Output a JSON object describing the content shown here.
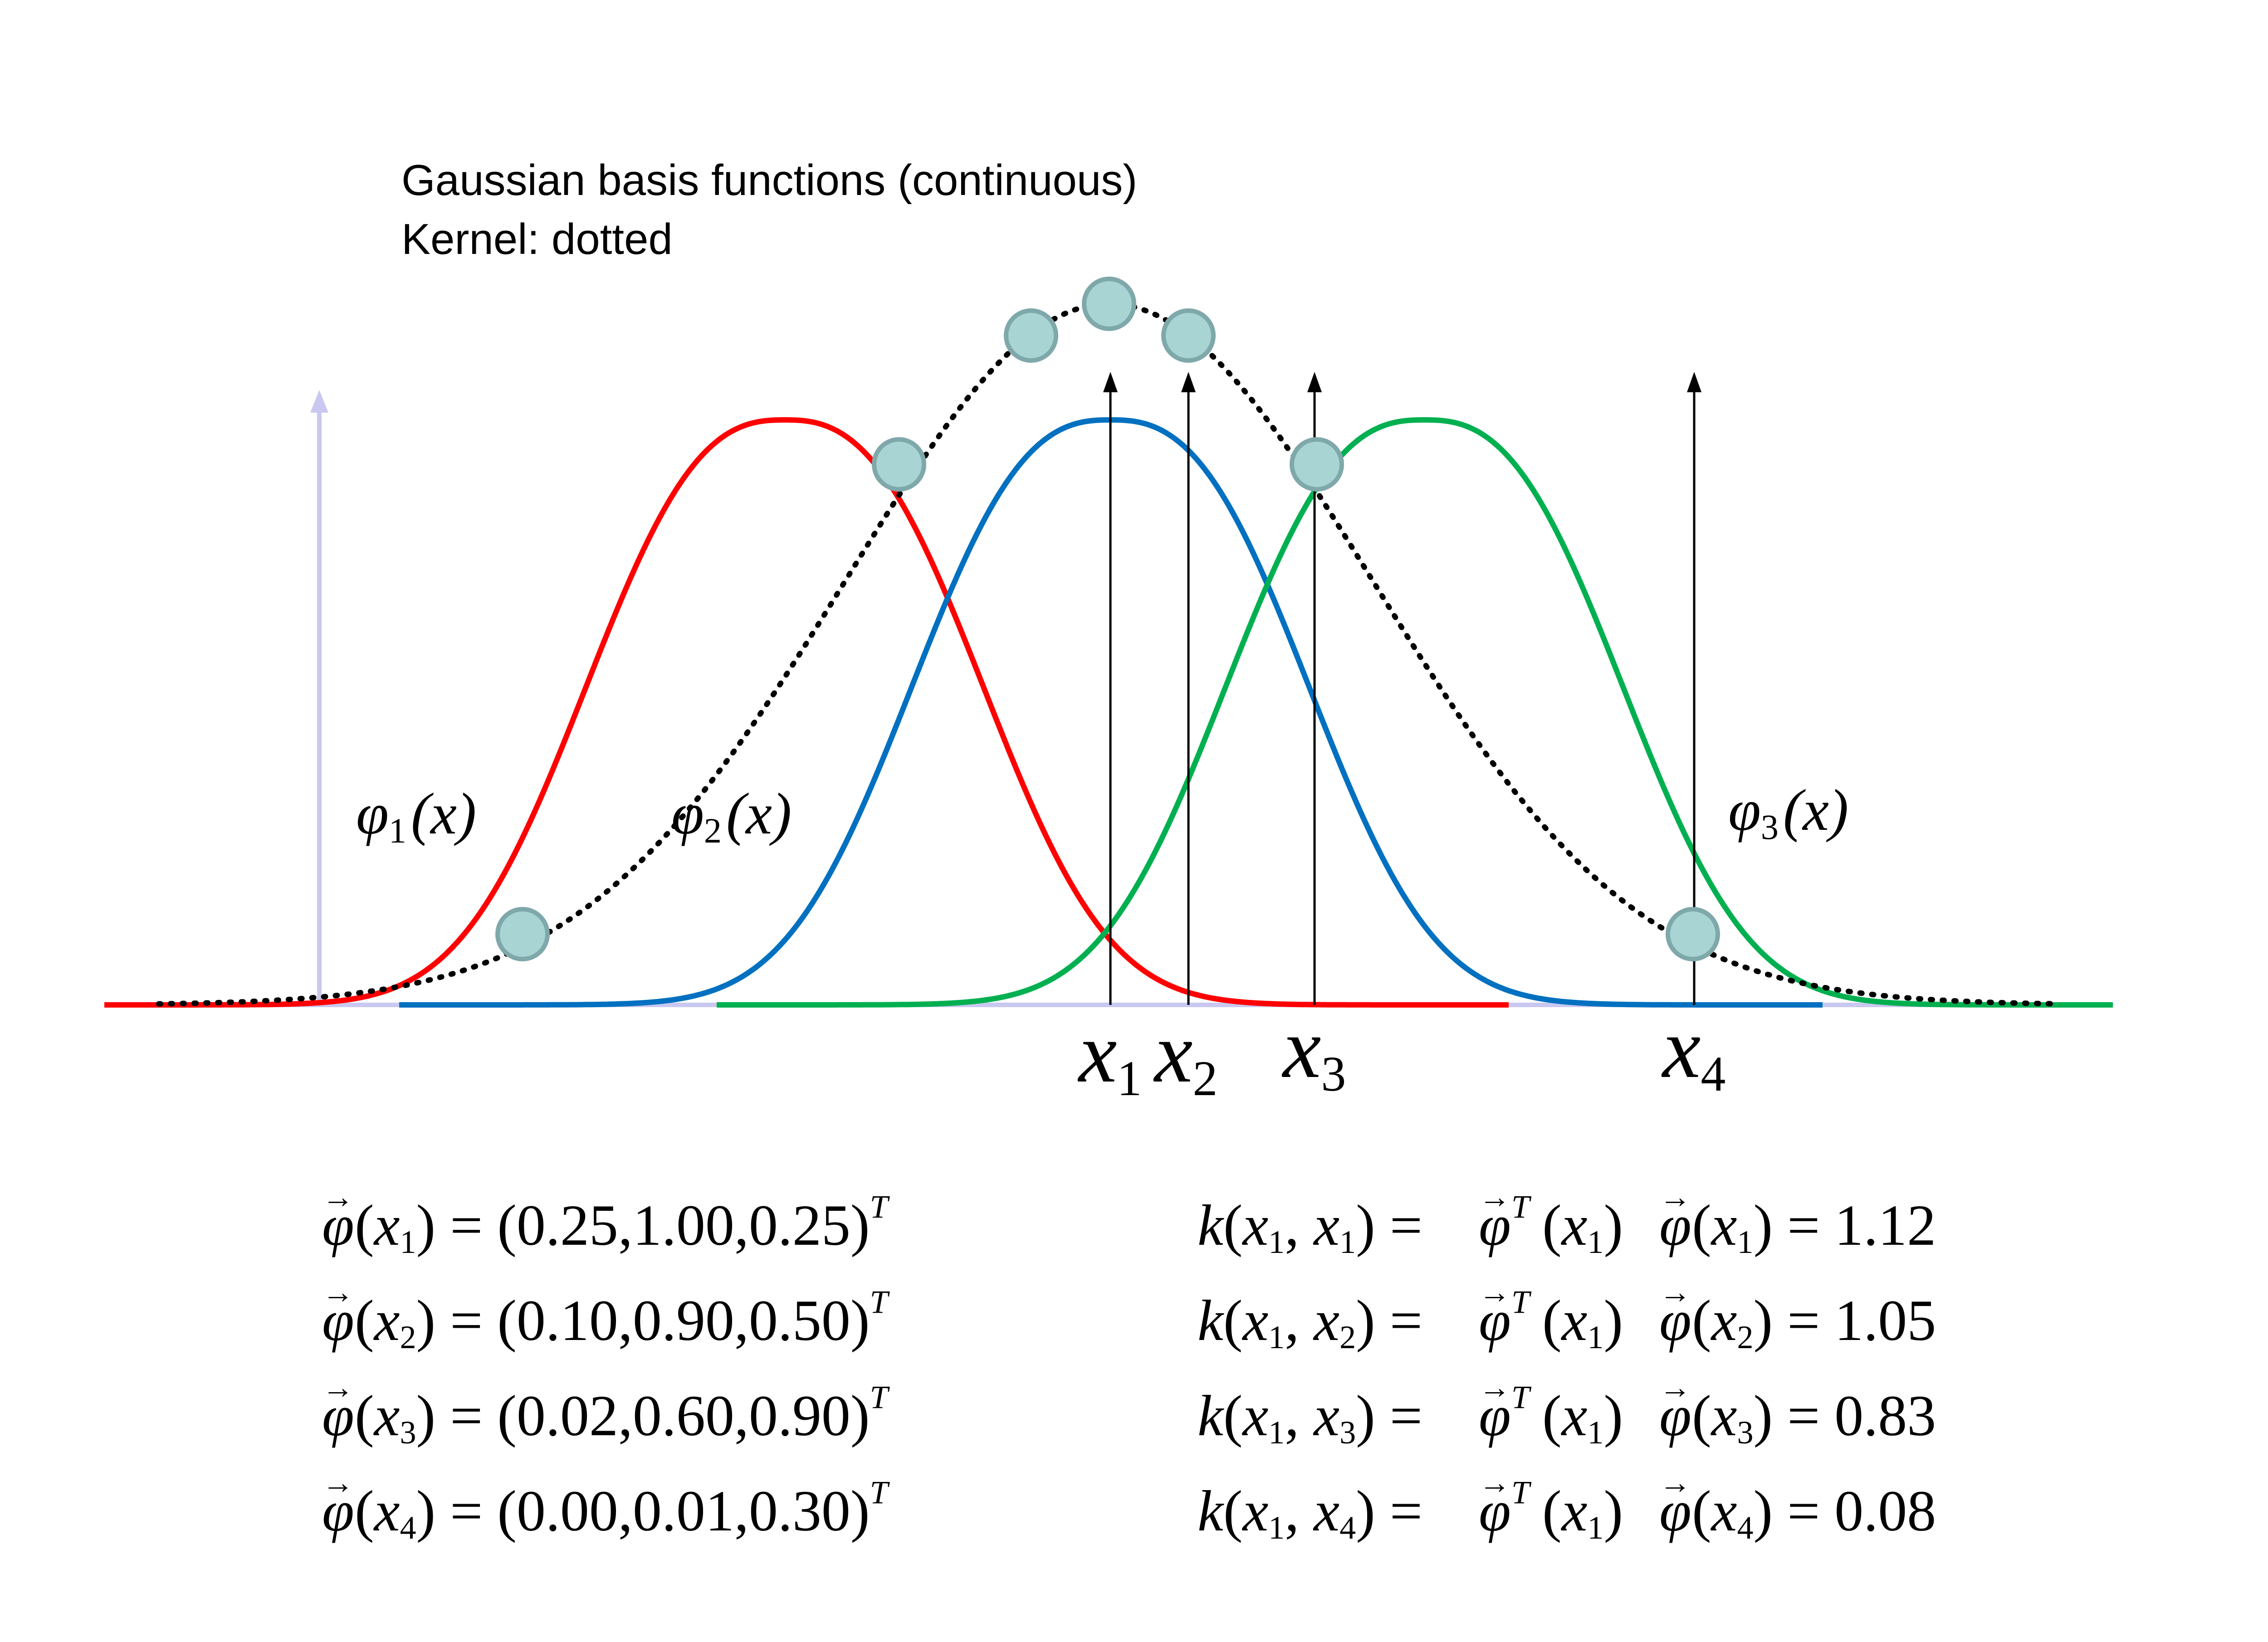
{
  "title_line1": "Gaussian basis functions (continuous)",
  "title_line2": "Kernel: dotted",
  "colors": {
    "phi1": "#ff0000",
    "phi2": "#0070c0",
    "phi3": "#00b050",
    "kernel": "#000000",
    "axis": "#c8c8f0",
    "marker_fill": "#a9d4d4",
    "marker_stroke": "#7fa8ab"
  },
  "curve_labels": {
    "phi1": {
      "sym": "φ",
      "sub": "1",
      "arg": "(x)"
    },
    "phi2": {
      "sym": "φ",
      "sub": "2",
      "arg": "(x)"
    },
    "phi3": {
      "sym": "φ",
      "sub": "3",
      "arg": "(x)"
    }
  },
  "points": [
    {
      "sym": "x",
      "sub": "1"
    },
    {
      "sym": "x",
      "sub": "2"
    },
    {
      "sym": "x",
      "sub": "3"
    },
    {
      "sym": "x",
      "sub": "4"
    }
  ],
  "feature_vectors": [
    {
      "sub": "1",
      "rhs": "= (0.25,1.00,0.25)"
    },
    {
      "sub": "2",
      "rhs": "= (0.10,0.90,0.50)"
    },
    {
      "sub": "3",
      "rhs": "= (0.02,0.60,0.90)"
    },
    {
      "sub": "4",
      "rhs": "= (0.00,0.01,0.30)"
    }
  ],
  "kernel_values": [
    {
      "sub": "1",
      "value": "= 1.12"
    },
    {
      "sub": "2",
      "value": "= 1.05"
    },
    {
      "sub": "3",
      "value": "= 0.83"
    },
    {
      "sub": "4",
      "value": "= 0.08"
    }
  ]
}
